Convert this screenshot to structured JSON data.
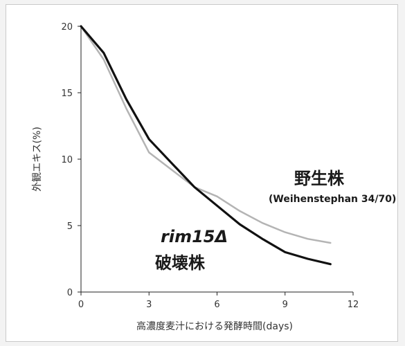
{
  "chart_data": {
    "type": "line",
    "xlabel": "高濃度麦汁における発酵時間(days)",
    "ylabel": "外観エキス(%)",
    "xlim": [
      0,
      12
    ],
    "ylim": [
      0,
      20
    ],
    "x_ticks": [
      "0",
      "3",
      "6",
      "9",
      "12"
    ],
    "y_ticks": [
      "0",
      "5",
      "10",
      "15",
      "20"
    ],
    "grid": false,
    "series": [
      {
        "name": "野生株 (Weihenstephan 34/70)",
        "color": "#b4b4b4",
        "x": [
          0,
          1,
          2,
          3,
          4,
          5,
          6,
          7,
          8,
          9,
          10,
          11
        ],
        "y": [
          20,
          17.5,
          13.8,
          10.5,
          9.2,
          7.9,
          7.2,
          6.1,
          5.2,
          4.5,
          4.0,
          3.7
        ]
      },
      {
        "name": "rim15Δ 破壊株",
        "color": "#111111",
        "x": [
          0,
          1,
          2,
          3,
          4,
          5,
          6,
          7,
          8,
          9,
          10,
          11
        ],
        "y": [
          20,
          18.0,
          14.5,
          11.5,
          9.7,
          7.9,
          6.5,
          5.1,
          4.0,
          3.0,
          2.5,
          2.1
        ]
      }
    ],
    "annotations": {
      "wild_label": "野生株",
      "wild_strain": "(Weihenstephan 34/70)",
      "mutant_gene": "rim15Δ",
      "mutant_label": "破壊株"
    }
  }
}
